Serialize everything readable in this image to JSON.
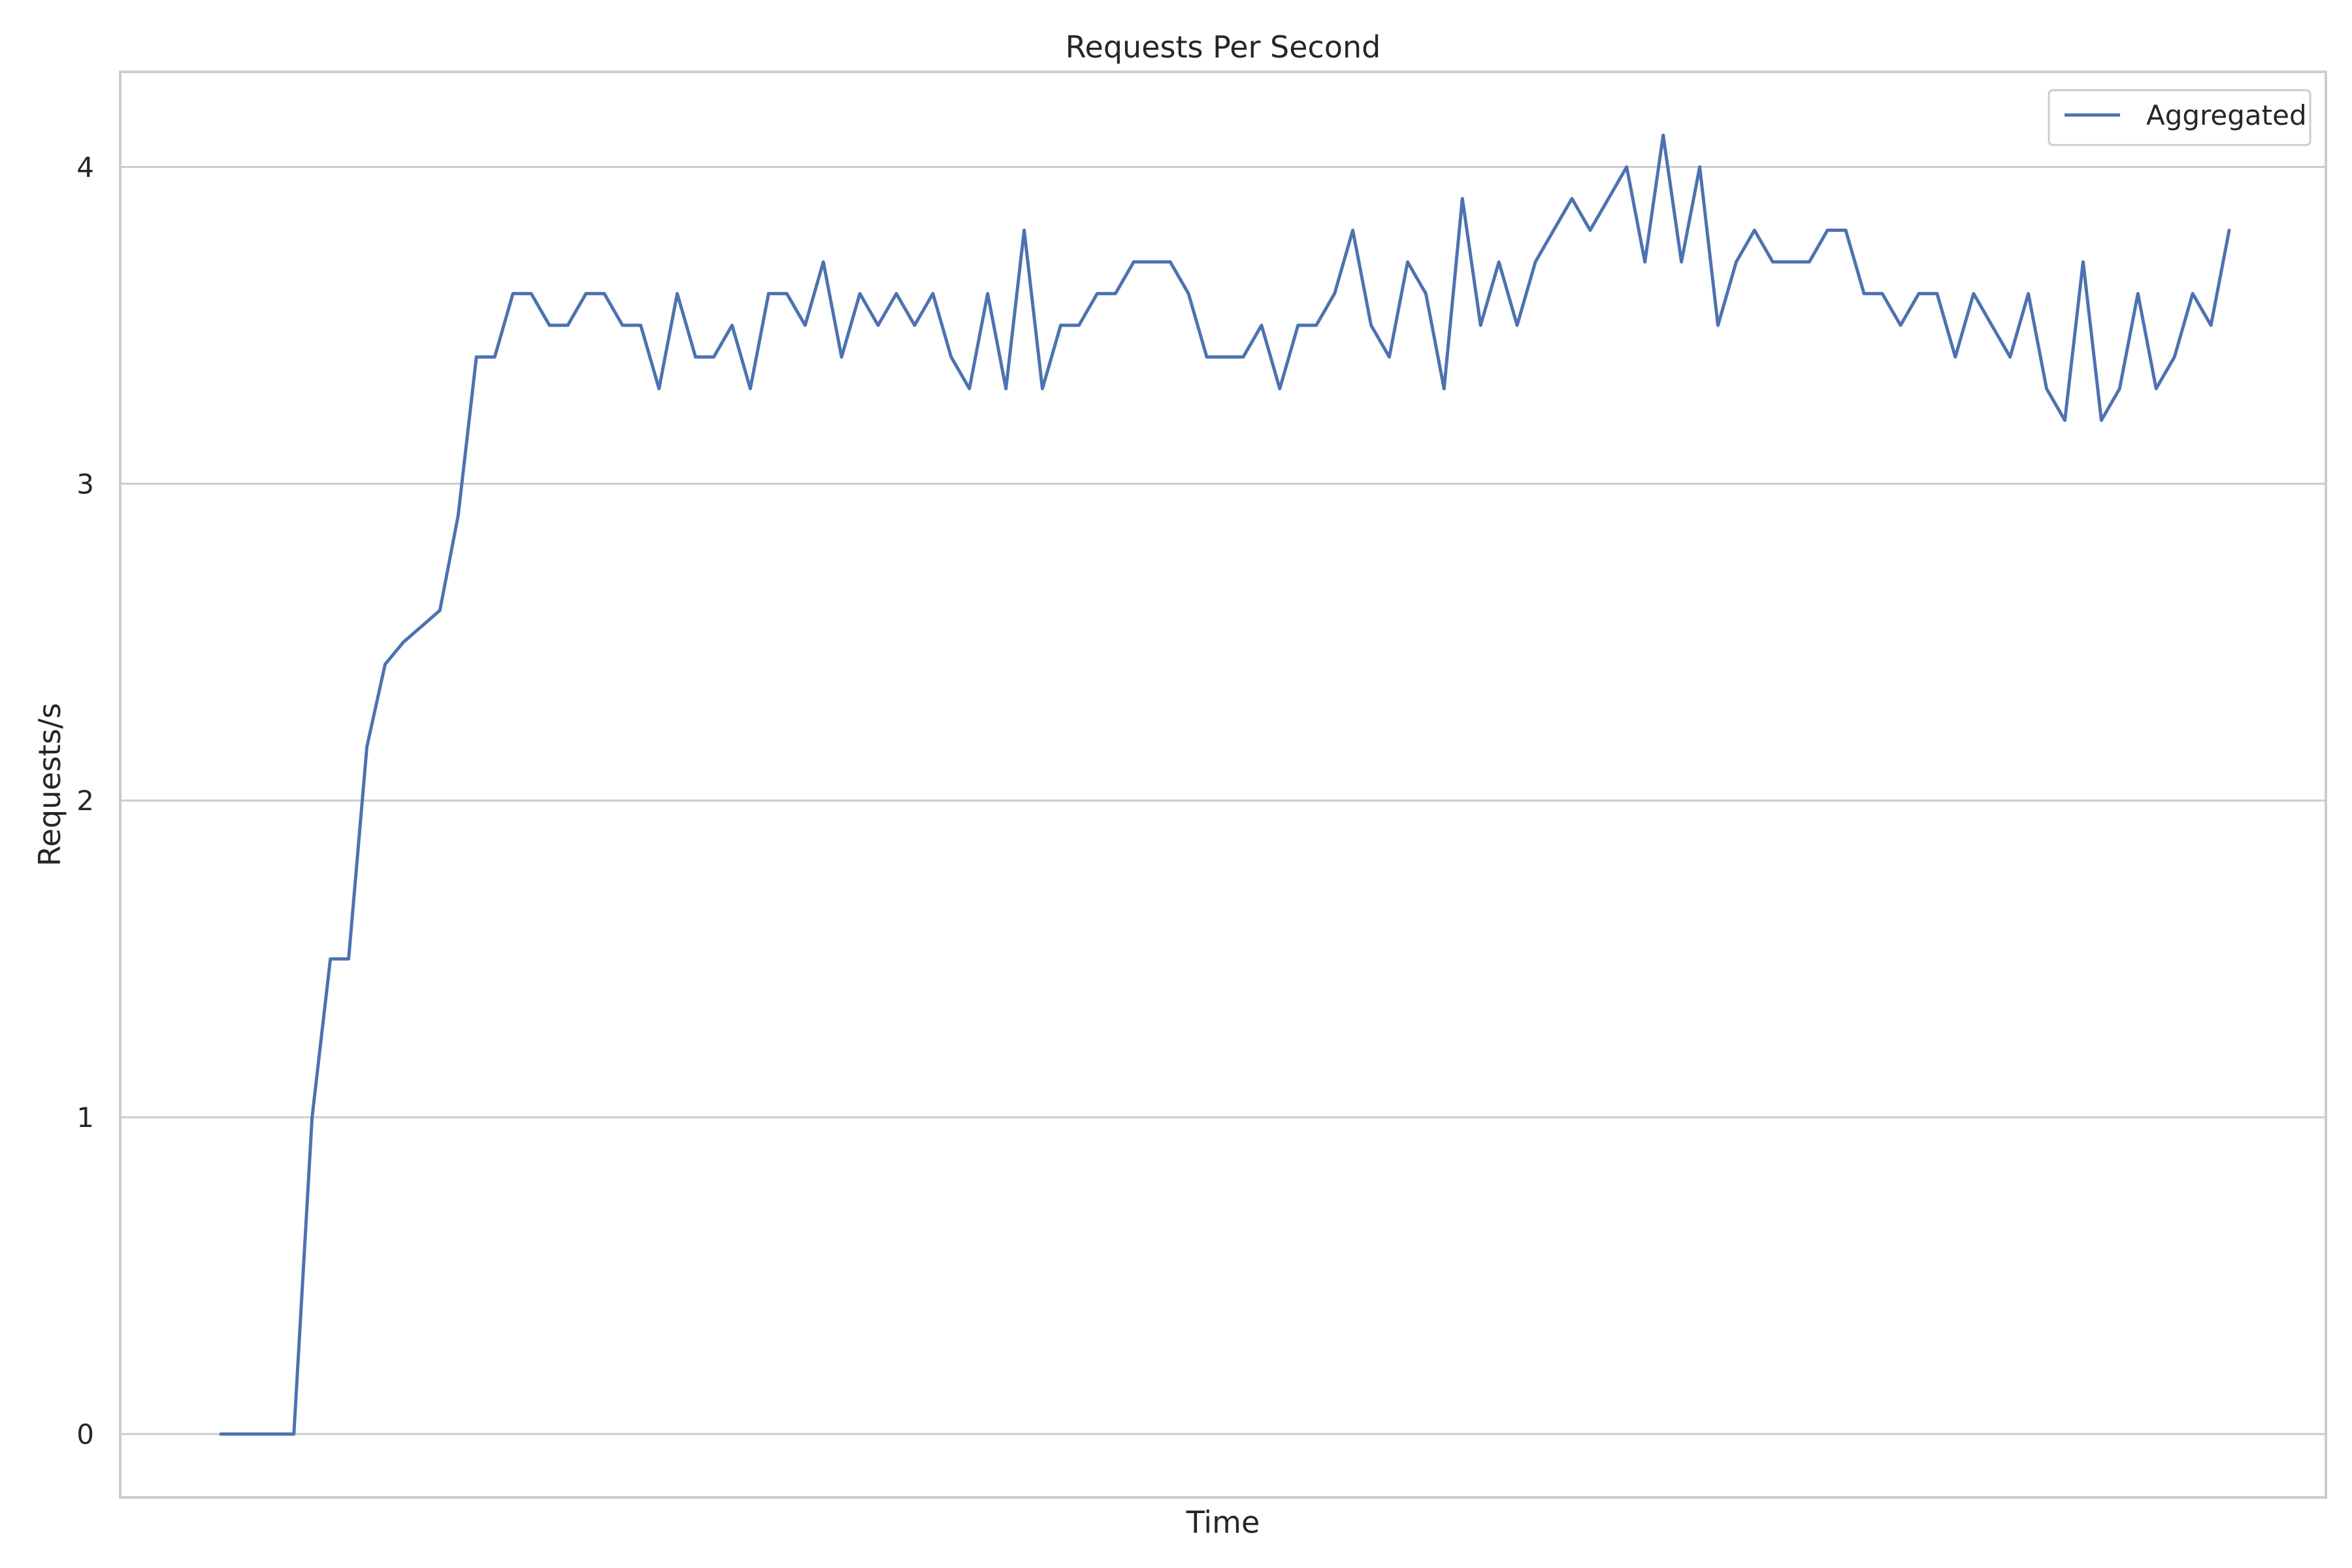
{
  "chart_data": {
    "type": "line",
    "title": "Requests Per Second",
    "xlabel": "Time",
    "ylabel": "Requests/s",
    "ylim": [
      -0.2,
      4.3
    ],
    "yticks": [
      0,
      1,
      2,
      3,
      4
    ],
    "x_tick_labels": [],
    "grid": "horizontal",
    "legend_position": "top-right",
    "colors": {
      "series": "#4c72b0",
      "grid": "#cccccc",
      "frame": "#cccccc",
      "text": "#262626",
      "background": "#ffffff"
    },
    "series": [
      {
        "name": "Aggregated",
        "values": [
          0,
          0,
          0,
          0,
          0,
          1.0,
          1.5,
          1.5,
          2.17,
          2.43,
          2.5,
          2.55,
          2.6,
          2.9,
          3.4,
          3.4,
          3.6,
          3.6,
          3.5,
          3.5,
          3.6,
          3.6,
          3.5,
          3.5,
          3.3,
          3.6,
          3.4,
          3.4,
          3.5,
          3.3,
          3.6,
          3.6,
          3.5,
          3.7,
          3.4,
          3.6,
          3.5,
          3.6,
          3.5,
          3.6,
          3.4,
          3.3,
          3.6,
          3.3,
          3.8,
          3.3,
          3.5,
          3.5,
          3.6,
          3.6,
          3.7,
          3.7,
          3.7,
          3.6,
          3.4,
          3.4,
          3.4,
          3.5,
          3.3,
          3.5,
          3.5,
          3.6,
          3.8,
          3.5,
          3.4,
          3.7,
          3.6,
          3.3,
          3.9,
          3.5,
          3.7,
          3.5,
          3.7,
          3.8,
          3.9,
          3.8,
          3.9,
          4.0,
          3.7,
          4.1,
          3.7,
          4.0,
          3.5,
          3.7,
          3.8,
          3.7,
          3.7,
          3.7,
          3.8,
          3.8,
          3.6,
          3.6,
          3.5,
          3.6,
          3.6,
          3.4,
          3.6,
          3.5,
          3.4,
          3.6,
          3.3,
          3.2,
          3.7,
          3.2,
          3.3,
          3.6,
          3.3,
          3.4,
          3.6,
          3.5,
          3.8
        ]
      }
    ]
  }
}
